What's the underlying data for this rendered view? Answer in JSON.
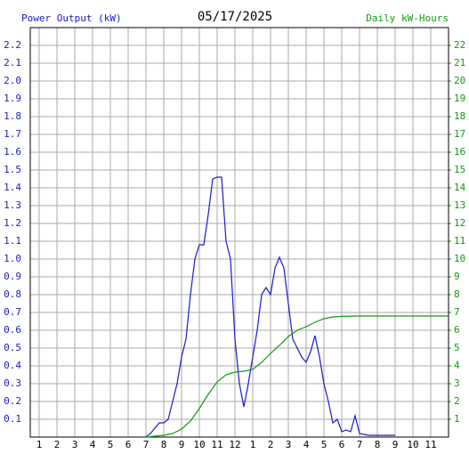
{
  "chart_data": {
    "type": "line",
    "title": "05/17/2025",
    "y_label": "Power Output (kW)",
    "y2_label": "Daily kW-Hours",
    "xlim": [
      0.5,
      24
    ],
    "xticks": [
      1,
      2,
      3,
      4,
      5,
      6,
      7,
      8,
      9,
      10,
      11,
      12,
      {
        "value": 13,
        "label": "1"
      },
      {
        "value": 14,
        "label": "2"
      },
      {
        "value": 15,
        "label": "3"
      },
      {
        "value": 16,
        "label": "4"
      },
      {
        "value": 17,
        "label": "5"
      },
      {
        "value": 18,
        "label": "6"
      },
      {
        "value": 19,
        "label": "7"
      },
      {
        "value": 20,
        "label": "8"
      },
      {
        "value": 21,
        "label": "9"
      },
      {
        "value": 22,
        "label": "10"
      },
      {
        "value": 23,
        "label": "11"
      }
    ],
    "ylim": [
      0,
      2.3
    ],
    "yticks": [
      0.1,
      0.2,
      0.3,
      0.4,
      0.5,
      0.6,
      0.7,
      0.8,
      0.9,
      {
        "value": 1,
        "label": "1.0"
      },
      1.1,
      1.2,
      1.3,
      1.4,
      1.5,
      1.6,
      1.7,
      1.8,
      1.9,
      {
        "value": 2,
        "label": "2.0"
      },
      2.1,
      2.2
    ],
    "y2lim": [
      0,
      23
    ],
    "y2ticks": [
      1,
      2,
      3,
      4,
      5,
      6,
      7,
      8,
      9,
      10,
      11,
      12,
      13,
      14,
      15,
      16,
      17,
      18,
      19,
      20,
      21,
      22
    ],
    "grid": true,
    "series": [
      {
        "color": "#1a1acc",
        "axis": "y",
        "x": [
          7,
          7.25,
          7.5,
          7.75,
          8,
          8.25,
          8.5,
          8.75,
          9,
          9.25,
          9.5,
          9.75,
          10,
          10.25,
          10.5,
          10.75,
          11,
          11.25,
          11.5,
          11.75,
          12,
          12.25,
          12.5,
          12.75,
          13,
          13.25,
          13.5,
          13.75,
          14,
          14.25,
          14.5,
          14.75,
          15,
          15.25,
          15.5,
          15.75,
          16,
          16.25,
          16.5,
          16.75,
          17,
          17.25,
          17.5,
          17.75,
          18,
          18.25,
          18.5,
          18.75,
          19,
          19.5,
          20,
          20.5,
          21
        ],
        "values": [
          0,
          0.02,
          0.05,
          0.08,
          0.08,
          0.1,
          0.2,
          0.3,
          0.45,
          0.55,
          0.8,
          1.0,
          1.08,
          1.08,
          1.25,
          1.45,
          1.46,
          1.46,
          1.1,
          1.0,
          0.55,
          0.3,
          0.17,
          0.3,
          0.45,
          0.6,
          0.8,
          0.84,
          0.8,
          0.95,
          1.01,
          0.95,
          0.75,
          0.55,
          0.5,
          0.45,
          0.42,
          0.48,
          0.57,
          0.45,
          0.3,
          0.2,
          0.08,
          0.1,
          0.03,
          0.04,
          0.03,
          0.12,
          0.02,
          0.01,
          0.01,
          0.01,
          0.01
        ]
      },
      {
        "color": "#119911",
        "axis": "y2",
        "x": [
          7,
          7.5,
          8,
          8.5,
          9,
          9.5,
          10,
          10.5,
          11,
          11.5,
          12,
          12.5,
          13,
          13.5,
          14,
          14.5,
          15,
          15.5,
          16,
          16.5,
          17,
          17.5,
          18,
          19,
          24
        ],
        "values": [
          0,
          0.05,
          0.1,
          0.2,
          0.45,
          0.9,
          1.6,
          2.4,
          3.1,
          3.5,
          3.65,
          3.7,
          3.8,
          4.2,
          4.7,
          5.15,
          5.65,
          6.0,
          6.2,
          6.45,
          6.65,
          6.75,
          6.78,
          6.8,
          6.8
        ]
      }
    ]
  }
}
